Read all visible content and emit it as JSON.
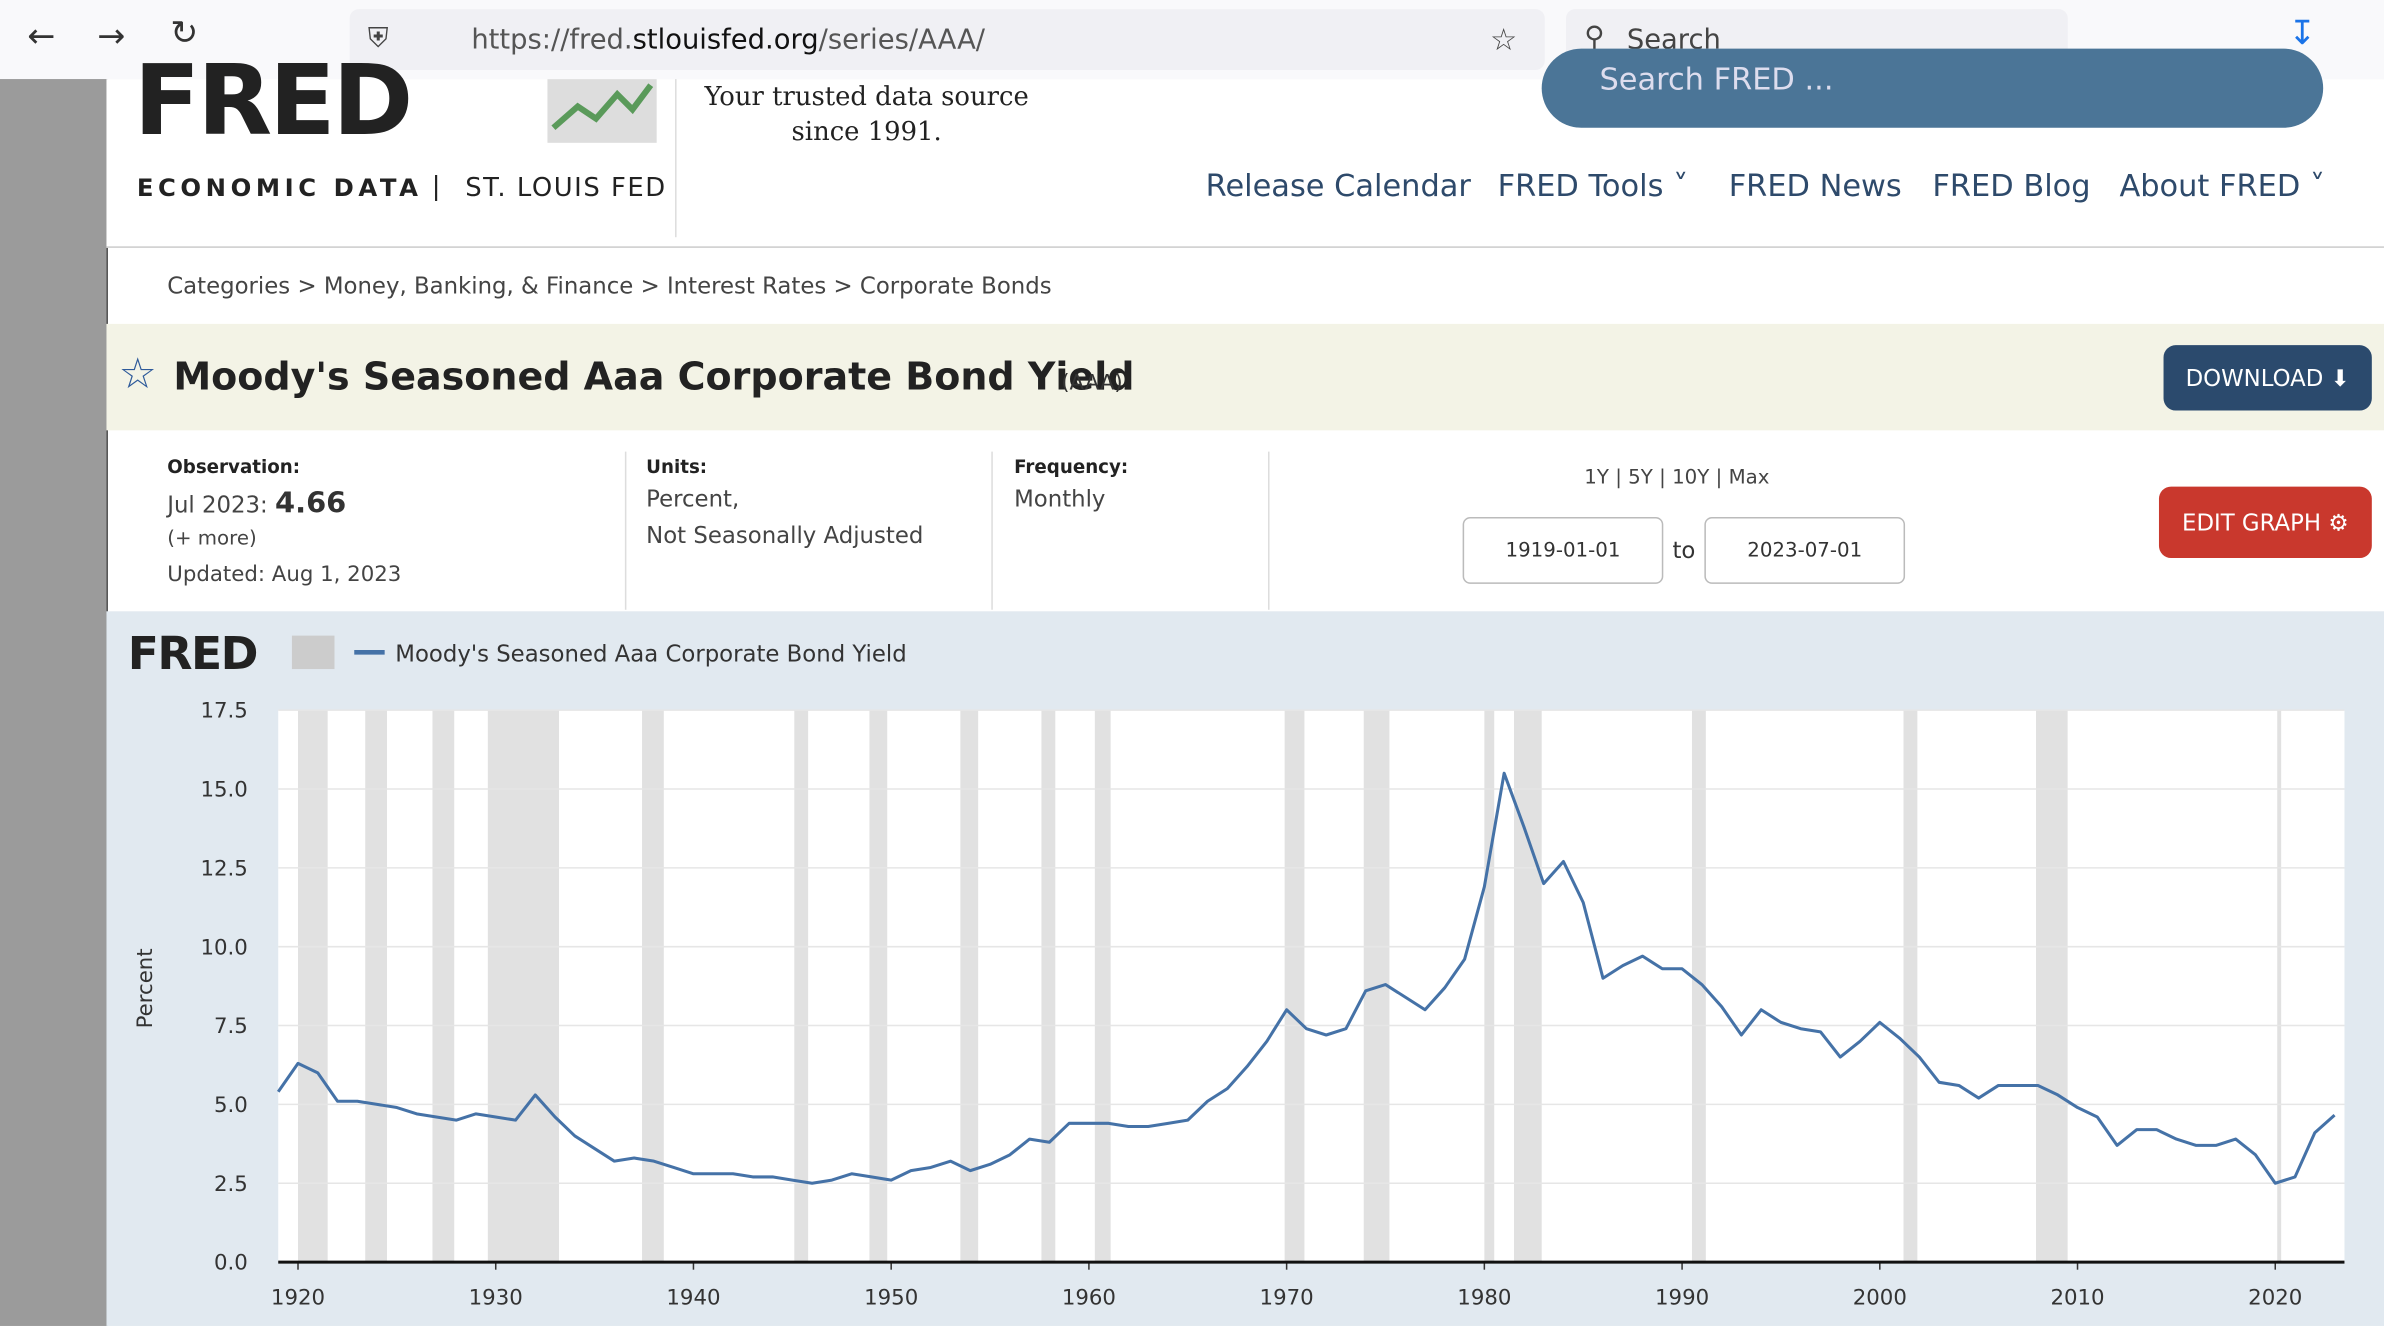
{
  "browser": {
    "url_prefix": "https://fred.",
    "url_host": "stlouisfed.org",
    "url_path": "/series/AAA/",
    "search": "Search"
  },
  "header": {
    "logo": "FRED",
    "subtitle": "ECONOMIC DATA",
    "separator": "|",
    "org": "ST. LOUIS FED",
    "tagline": [
      "Your trusted data source",
      "since 1991."
    ],
    "search_placeholder": "Search FRED ...",
    "nav": [
      "Release Calendar",
      "FRED Tools",
      "FRED News",
      "FRED Blog",
      "About FRED"
    ]
  },
  "breadcrumbs": {
    "items": [
      "Categories",
      "Money, Banking, & Finance",
      "Interest Rates",
      "Corporate Bonds"
    ],
    "separator": ">"
  },
  "series": {
    "title": "Moody's Seasoned Aaa Corporate Bond Yield",
    "code": "(AAA)",
    "download": "DOWNLOAD",
    "observation_label": "Observation:",
    "observation_date": "Jul 2023:",
    "observation_value": "4.66",
    "more": "(+ more)",
    "updated": "Updated: Aug 1, 2023",
    "units_label": "Units:",
    "units": [
      "Percent,",
      "Not Seasonally Adjusted"
    ],
    "frequency_label": "Frequency:",
    "frequency": "Monthly",
    "ranges": [
      "1Y",
      "5Y",
      "10Y",
      "Max"
    ],
    "range_separator": "|",
    "start_date": "1919-01-01",
    "to": "to",
    "end_date": "2023-07-01",
    "edit": "EDIT GRAPH"
  },
  "chart_data": {
    "type": "line",
    "logo": "FRED",
    "y_label": "Percent",
    "x": [
      1919,
      1920,
      1921,
      1922,
      1923,
      1924,
      1925,
      1926,
      1927,
      1928,
      1929,
      1930,
      1931,
      1932,
      1933,
      1934,
      1935,
      1936,
      1937,
      1938,
      1939,
      1940,
      1941,
      1942,
      1943,
      1944,
      1945,
      1946,
      1947,
      1948,
      1949,
      1950,
      1951,
      1952,
      1953,
      1954,
      1955,
      1956,
      1957,
      1958,
      1959,
      1960,
      1961,
      1962,
      1963,
      1964,
      1965,
      1966,
      1967,
      1968,
      1969,
      1970,
      1971,
      1972,
      1973,
      1974,
      1975,
      1976,
      1977,
      1978,
      1979,
      1980,
      1981,
      1982,
      1983,
      1984,
      1985,
      1986,
      1987,
      1988,
      1989,
      1990,
      1991,
      1992,
      1993,
      1994,
      1995,
      1996,
      1997,
      1998,
      1999,
      2000,
      2001,
      2002,
      2003,
      2004,
      2005,
      2006,
      2007,
      2008,
      2009,
      2010,
      2011,
      2012,
      2013,
      2014,
      2015,
      2016,
      2017,
      2018,
      2019,
      2020,
      2021,
      2022,
      2023
    ],
    "series": [
      {
        "name": "Moody's Seasoned Aaa Corporate Bond Yield",
        "color": "#4572a7",
        "values": [
          5.4,
          6.3,
          6.0,
          5.1,
          5.1,
          5.0,
          4.9,
          4.7,
          4.6,
          4.5,
          4.7,
          4.6,
          4.5,
          5.3,
          4.6,
          4.0,
          3.6,
          3.2,
          3.3,
          3.2,
          3.0,
          2.8,
          2.8,
          2.8,
          2.7,
          2.7,
          2.6,
          2.5,
          2.6,
          2.8,
          2.7,
          2.6,
          2.9,
          3.0,
          3.2,
          2.9,
          3.1,
          3.4,
          3.9,
          3.8,
          4.4,
          4.4,
          4.4,
          4.3,
          4.3,
          4.4,
          4.5,
          5.1,
          5.5,
          6.2,
          7.0,
          8.0,
          7.4,
          7.2,
          7.4,
          8.6,
          8.8,
          8.4,
          8.0,
          8.7,
          9.6,
          11.9,
          15.5,
          13.8,
          12.0,
          12.7,
          11.4,
          9.0,
          9.4,
          9.7,
          9.3,
          9.3,
          8.8,
          8.1,
          7.2,
          8.0,
          7.6,
          7.4,
          7.3,
          6.5,
          7.0,
          7.6,
          7.1,
          6.5,
          5.7,
          5.6,
          5.2,
          5.6,
          5.6,
          5.6,
          5.3,
          4.9,
          4.6,
          3.7,
          4.2,
          4.2,
          3.9,
          3.7,
          3.7,
          3.9,
          3.4,
          2.5,
          2.7,
          4.1,
          4.66
        ]
      }
    ],
    "recessions": [
      [
        1920.0,
        1921.5
      ],
      [
        1923.4,
        1924.5
      ],
      [
        1926.8,
        1927.9
      ],
      [
        1929.6,
        1933.2
      ],
      [
        1937.4,
        1938.5
      ],
      [
        1945.1,
        1945.8
      ],
      [
        1948.9,
        1949.8
      ],
      [
        1953.5,
        1954.4
      ],
      [
        1957.6,
        1958.3
      ],
      [
        1960.3,
        1961.1
      ],
      [
        1969.9,
        1970.9
      ],
      [
        1973.9,
        1975.2
      ],
      [
        1980.0,
        1980.5
      ],
      [
        1981.5,
        1982.9
      ],
      [
        1990.5,
        1991.2
      ],
      [
        2001.2,
        2001.9
      ],
      [
        2007.9,
        2009.5
      ],
      [
        2020.1,
        2020.3
      ]
    ],
    "xlim": [
      1919,
      2023.5
    ],
    "xticks": [
      1920,
      1930,
      1940,
      1950,
      1960,
      1970,
      1980,
      1990,
      2000,
      2010,
      2020
    ],
    "ylim": [
      0,
      17.5
    ],
    "yticks": [
      {
        "value": 0,
        "label": "0.0"
      },
      2.5,
      {
        "value": 5,
        "label": "5.0"
      },
      7.5,
      {
        "value": 10,
        "label": "10.0"
      },
      12.5,
      {
        "value": 15,
        "label": "15.0"
      },
      17.5
    ],
    "grid": true
  }
}
